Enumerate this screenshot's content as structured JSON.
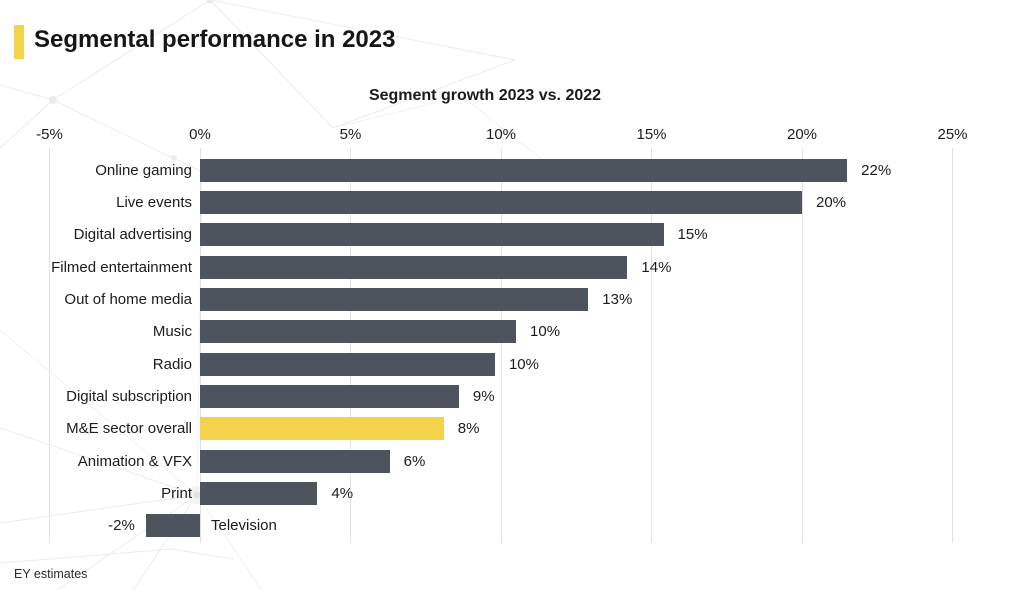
{
  "page": {
    "title": "Segmental performance in 2023",
    "footnote": "EY estimates"
  },
  "colors": {
    "accent_yellow": "#F5D24B",
    "bar_dark": "#4D545E",
    "highlight_yellow": "#F5D24B",
    "gridline": "#E1E1E1",
    "text": "#1B1B1B"
  },
  "chart_data": {
    "type": "bar",
    "orientation": "horizontal",
    "title": "Segment growth 2023 vs. 2022",
    "xlabel": "",
    "ylabel": "",
    "xlim": [
      -5,
      25
    ],
    "grid": true,
    "x_ticks": [
      "-5%",
      "0%",
      "5%",
      "10%",
      "15%",
      "20%",
      "25%"
    ],
    "x_tick_values": [
      -5,
      0,
      5,
      10,
      15,
      20,
      25
    ],
    "categories": [
      "Online gaming",
      "Live events",
      "Digital advertising",
      "Filmed entertainment",
      "Out of home media",
      "Music",
      "Radio",
      "Digital subscription",
      "M&E sector overall",
      "Animation & VFX",
      "Print",
      "Television"
    ],
    "values": [
      22,
      20,
      15,
      14,
      13,
      10,
      10,
      9,
      8,
      6,
      4,
      -2
    ],
    "value_labels": [
      "22%",
      "20%",
      "15%",
      "14%",
      "13%",
      "10%",
      "10%",
      "9%",
      "8%",
      "6%",
      "4%",
      "-2%"
    ],
    "bar_lengths_pct": [
      21.5,
      20.0,
      15.4,
      14.2,
      12.9,
      10.5,
      9.8,
      8.6,
      8.1,
      6.3,
      3.9,
      -1.8
    ],
    "highlighted_category": "M&E sector overall",
    "legend": []
  }
}
